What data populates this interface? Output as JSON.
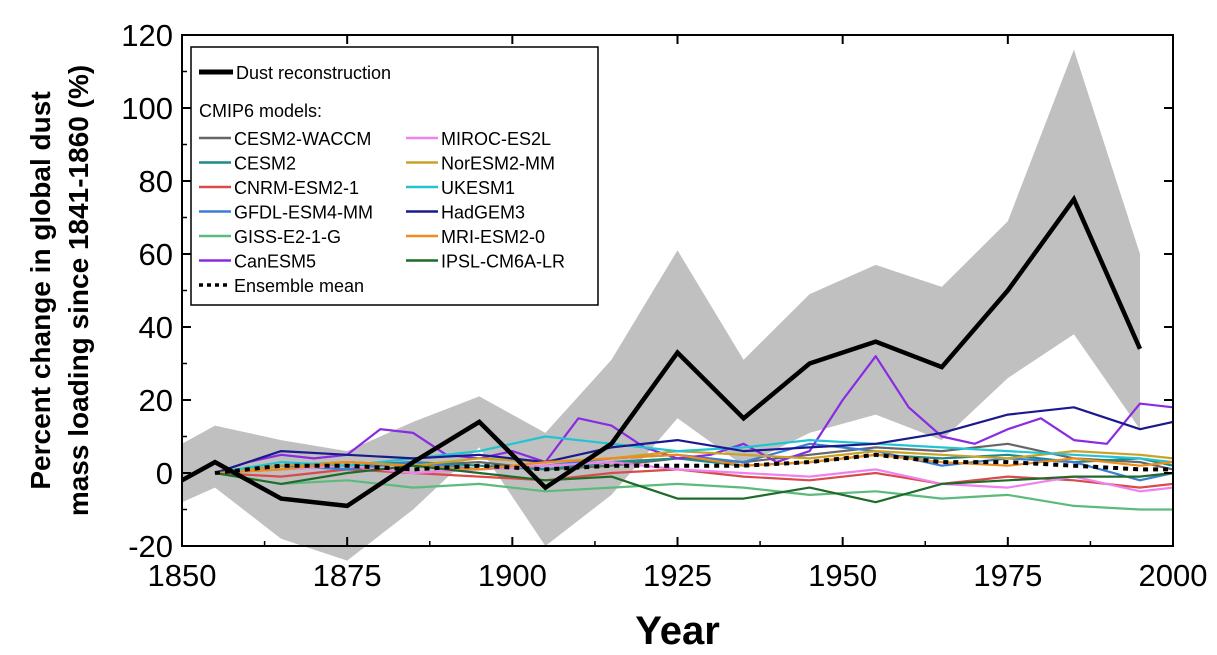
{
  "chart_data": {
    "type": "line",
    "xlabel": "Year",
    "ylabel_lines": [
      "Percent change in global dust",
      "mass loading since 1841-1860 (%)"
    ],
    "xlim": [
      1850,
      2000
    ],
    "ylim": [
      -20,
      120
    ],
    "xticks": [
      1850,
      1875,
      1900,
      1925,
      1950,
      1975,
      2000
    ],
    "yticks": [
      -20,
      0,
      20,
      40,
      60,
      80,
      100,
      120
    ],
    "legend": {
      "placement": "top-left",
      "reconstruction_label": "Dust reconstruction",
      "models_heading": "CMIP6 models:",
      "mean_label": "Ensemble mean"
    },
    "reconstruction": {
      "name": "Dust reconstruction",
      "color": "#000000",
      "x": [
        1850,
        1855,
        1865,
        1875,
        1885,
        1895,
        1905,
        1915,
        1925,
        1935,
        1945,
        1955,
        1965,
        1975,
        1985,
        1995
      ],
      "y": [
        -2,
        3,
        -7,
        -9,
        3,
        14,
        -4,
        8,
        33,
        15,
        30,
        36,
        29,
        50,
        75,
        34
      ],
      "band_upper": [
        8,
        13,
        9,
        6,
        14,
        21,
        11,
        31,
        61,
        31,
        49,
        57,
        51,
        69,
        116,
        60
      ],
      "band_lower": [
        -8,
        -4,
        -18,
        -24,
        -10,
        7,
        -20,
        -6,
        15,
        2,
        11,
        16,
        9,
        26,
        38,
        12
      ],
      "band_color": "#c0c0c0"
    },
    "series": [
      {
        "name": "CESM2-WACCM",
        "color": "#666666",
        "x": [
          1855,
          1865,
          1875,
          1885,
          1895,
          1905,
          1915,
          1925,
          1935,
          1945,
          1955,
          1965,
          1975,
          1985,
          1995,
          2000
        ],
        "y": [
          0,
          2,
          3,
          2,
          3,
          1,
          2,
          4,
          3,
          5,
          7,
          6,
          8,
          4,
          3,
          1
        ]
      },
      {
        "name": "CESM2",
        "color": "#1f8a8a",
        "x": [
          1855,
          1865,
          1875,
          1885,
          1895,
          1905,
          1915,
          1925,
          1935,
          1945,
          1955,
          1965,
          1975,
          1985,
          1995,
          2000
        ],
        "y": [
          0,
          1,
          2,
          3,
          2,
          1,
          3,
          4,
          2,
          3,
          5,
          4,
          5,
          3,
          4,
          2
        ]
      },
      {
        "name": "CNRM-ESM2-1",
        "color": "#d94a4a",
        "x": [
          1855,
          1865,
          1875,
          1885,
          1895,
          1905,
          1915,
          1925,
          1935,
          1945,
          1955,
          1965,
          1975,
          1985,
          1995,
          2000
        ],
        "y": [
          0,
          -1,
          1,
          0,
          -1,
          -2,
          0,
          1,
          -1,
          -2,
          0,
          -3,
          -1,
          -2,
          -4,
          -3
        ]
      },
      {
        "name": "GFDL-ESM4-MM",
        "color": "#3a7fd5",
        "x": [
          1855,
          1865,
          1875,
          1885,
          1895,
          1905,
          1915,
          1925,
          1935,
          1945,
          1955,
          1965,
          1975,
          1985,
          1995,
          2000
        ],
        "y": [
          0,
          2,
          1,
          3,
          1,
          2,
          4,
          5,
          3,
          8,
          6,
          2,
          4,
          3,
          -2,
          0
        ]
      },
      {
        "name": "GISS-E2-1-G",
        "color": "#5cba7d",
        "x": [
          1855,
          1865,
          1875,
          1885,
          1895,
          1905,
          1915,
          1925,
          1935,
          1945,
          1955,
          1965,
          1975,
          1985,
          1995,
          2000
        ],
        "y": [
          0,
          -3,
          -2,
          -4,
          -3,
          -5,
          -4,
          -3,
          -4,
          -6,
          -5,
          -7,
          -6,
          -9,
          -10,
          -10
        ]
      },
      {
        "name": "CanESM5",
        "color": "#8a2be2",
        "x": [
          1855,
          1860,
          1865,
          1870,
          1875,
          1880,
          1885,
          1890,
          1895,
          1900,
          1905,
          1910,
          1915,
          1920,
          1925,
          1930,
          1935,
          1940,
          1945,
          1950,
          1955,
          1960,
          1965,
          1970,
          1975,
          1980,
          1985,
          1990,
          1995,
          2000
        ],
        "y": [
          0,
          3,
          5,
          4,
          5,
          12,
          11,
          5,
          4,
          6,
          3,
          15,
          13,
          7,
          4,
          5,
          8,
          3,
          6,
          20,
          32,
          18,
          10,
          8,
          12,
          15,
          9,
          8,
          19,
          18
        ]
      },
      {
        "name": "MIROC-ES2L",
        "color": "#ee82ee",
        "x": [
          1855,
          1865,
          1875,
          1885,
          1895,
          1905,
          1915,
          1925,
          1935,
          1945,
          1955,
          1965,
          1975,
          1985,
          1995,
          2000
        ],
        "y": [
          0,
          1,
          2,
          0,
          1,
          2,
          3,
          1,
          0,
          -1,
          1,
          -3,
          -4,
          -1,
          -5,
          -4
        ]
      },
      {
        "name": "NorESM2-MM",
        "color": "#c9a227",
        "x": [
          1855,
          1865,
          1875,
          1885,
          1895,
          1905,
          1915,
          1925,
          1935,
          1945,
          1955,
          1965,
          1975,
          1985,
          1995,
          2000
        ],
        "y": [
          0,
          2,
          3,
          2,
          4,
          3,
          4,
          6,
          5,
          4,
          6,
          5,
          4,
          6,
          5,
          4
        ]
      },
      {
        "name": "UKESM1",
        "color": "#22c4d2",
        "x": [
          1855,
          1865,
          1875,
          1885,
          1895,
          1905,
          1915,
          1925,
          1935,
          1945,
          1955,
          1965,
          1975,
          1985,
          1995,
          2000
        ],
        "y": [
          0,
          3,
          2,
          4,
          6,
          10,
          8,
          6,
          7,
          9,
          8,
          7,
          6,
          5,
          4,
          3
        ]
      },
      {
        "name": "HadGEM3",
        "color": "#1a1a8c",
        "x": [
          1855,
          1865,
          1875,
          1885,
          1895,
          1905,
          1915,
          1925,
          1935,
          1945,
          1955,
          1965,
          1975,
          1985,
          1995,
          2000
        ],
        "y": [
          0,
          6,
          5,
          4,
          5,
          3,
          7,
          9,
          6,
          7,
          8,
          11,
          16,
          18,
          12,
          14
        ]
      },
      {
        "name": "MRI-ESM2-0",
        "color": "#f08c1c",
        "x": [
          1855,
          1865,
          1875,
          1885,
          1895,
          1905,
          1915,
          1925,
          1935,
          1945,
          1955,
          1965,
          1975,
          1985,
          1995,
          2000
        ],
        "y": [
          0,
          1,
          3,
          2,
          1,
          3,
          4,
          5,
          2,
          3,
          5,
          3,
          2,
          4,
          2,
          3
        ]
      },
      {
        "name": "IPSL-CM6A-LR",
        "color": "#1f6b2a",
        "x": [
          1855,
          1865,
          1875,
          1885,
          1895,
          1905,
          1915,
          1925,
          1935,
          1945,
          1955,
          1965,
          1975,
          1985,
          1995,
          2000
        ],
        "y": [
          0,
          -3,
          0,
          2,
          0,
          -2,
          -1,
          -7,
          -7,
          -4,
          -8,
          -3,
          -2,
          -1,
          -1,
          0
        ]
      }
    ],
    "ensemble_mean": {
      "name": "Ensemble mean",
      "color": "#000000",
      "x": [
        1855,
        1865,
        1875,
        1885,
        1895,
        1905,
        1915,
        1925,
        1935,
        1945,
        1955,
        1965,
        1975,
        1985,
        1995,
        2000
      ],
      "y": [
        0,
        2,
        2,
        1,
        2,
        1,
        2,
        2,
        2,
        3,
        5,
        3,
        3,
        2,
        1,
        1
      ]
    }
  }
}
